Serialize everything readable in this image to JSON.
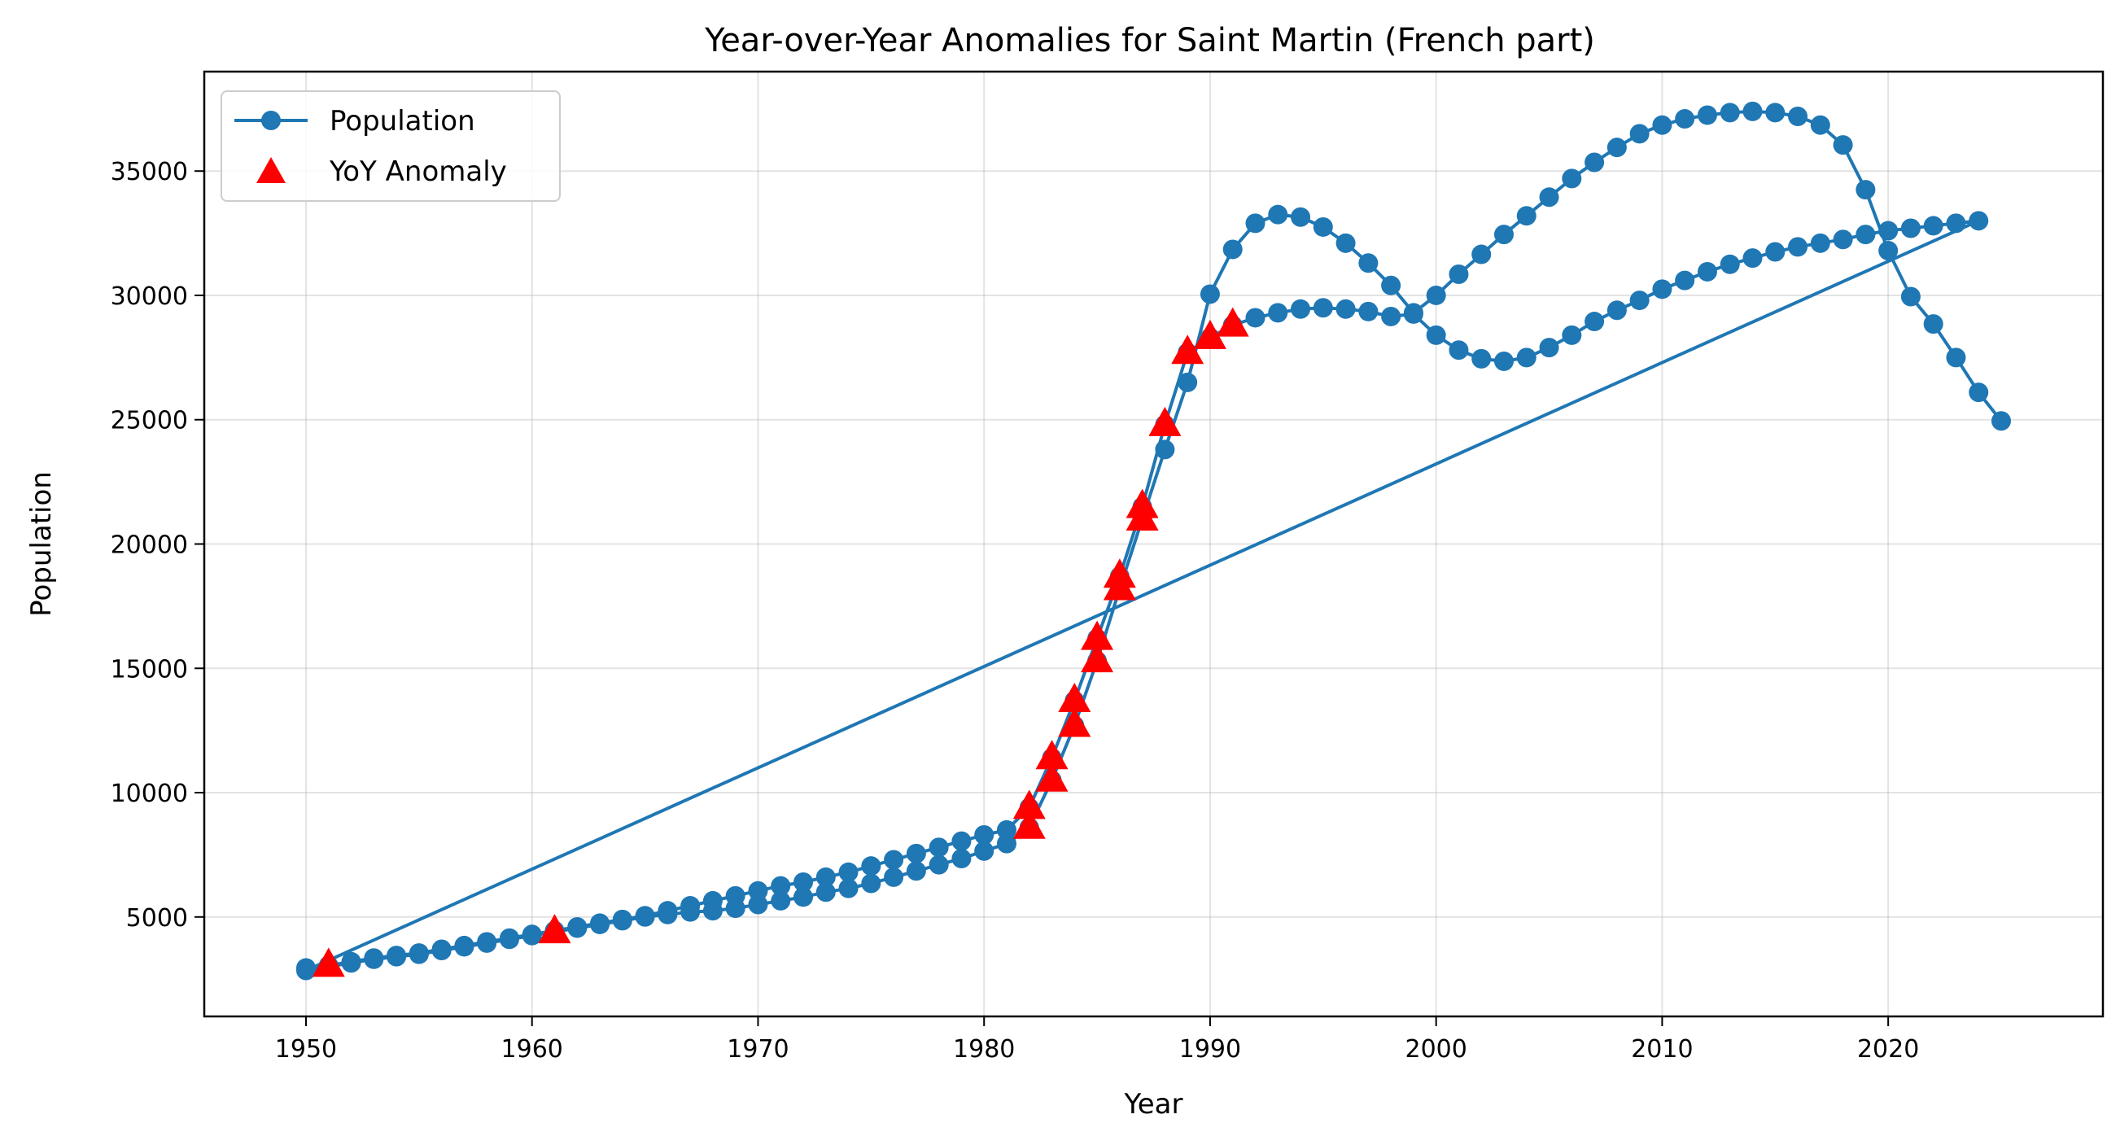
{
  "chart_data": {
    "type": "line",
    "title": "Year-over-Year Anomalies for Saint Martin (French part)",
    "xlabel": "Year",
    "ylabel": "Population",
    "xlim": [
      1945.5,
      2029.5
    ],
    "ylim": [
      1000,
      39000
    ],
    "xticks": [
      1950,
      1960,
      1970,
      1980,
      1990,
      2000,
      2010,
      2020
    ],
    "yticks": [
      5000,
      10000,
      15000,
      20000,
      25000,
      30000,
      35000
    ],
    "grid": true,
    "legend_position": "top-left",
    "colors": {
      "population": "#1f77b4",
      "anomaly": "#ff0000"
    },
    "series": [
      {
        "name": "Population",
        "style": "line-marker",
        "x": [
          1950,
          1951,
          1952,
          1953,
          1954,
          1955,
          1956,
          1957,
          1958,
          1959,
          1960,
          1961,
          1962,
          1963,
          1964,
          1965,
          1966,
          1967,
          1968,
          1969,
          1970,
          1971,
          1972,
          1973,
          1974,
          1975,
          1976,
          1977,
          1978,
          1979,
          1980,
          1981,
          1982,
          1983,
          1984,
          1985,
          1986,
          1987,
          1988,
          1989,
          1990,
          1991,
          1992,
          1993,
          1994,
          1995,
          1996,
          1997,
          1998,
          1999,
          2000,
          2001,
          2002,
          2003,
          2004,
          2005,
          2006,
          2007,
          2008,
          2009,
          2010,
          2011,
          2012,
          2013,
          2014,
          2015,
          2016,
          2017,
          2018,
          2019,
          2020,
          2021,
          2022,
          2023,
          2024,
          1950,
          1951,
          1952,
          1953,
          1954,
          1955,
          1956,
          1957,
          1958,
          1959,
          1960,
          1961,
          1962,
          1963,
          1964,
          1965,
          1966,
          1967,
          1968,
          1969,
          1970,
          1971,
          1972,
          1973,
          1974,
          1975,
          1976,
          1977,
          1978,
          1979,
          1980,
          1981,
          1982,
          1983,
          1984,
          1985,
          1986,
          1987,
          1988,
          1989,
          1990,
          1991,
          1992,
          1993,
          1994,
          1995,
          1996,
          1997,
          1998,
          1999,
          2000,
          2001,
          2002,
          2003,
          2004,
          2005,
          2006,
          2007,
          2008,
          2009,
          2010,
          2011,
          2012,
          2013,
          2014,
          2015,
          2016,
          2017,
          2018,
          2019,
          2020,
          2021,
          2022,
          2023,
          2024,
          2025
        ],
        "y": [
          2950,
          3050,
          3200,
          3350,
          3450,
          3550,
          3700,
          3850,
          4000,
          4150,
          4300,
          4450,
          4600,
          4750,
          4900,
          5050,
          5250,
          5450,
          5650,
          5850,
          6050,
          6250,
          6400,
          6600,
          6800,
          7050,
          7300,
          7550,
          7800,
          8050,
          8300,
          8500,
          9400,
          11400,
          13700,
          16200,
          18700,
          21500,
          24800,
          27700,
          28300,
          28800,
          29100,
          29300,
          29450,
          29500,
          29450,
          29350,
          29150,
          29250,
          28400,
          27800,
          27450,
          27350,
          27500,
          27900,
          28400,
          28950,
          29400,
          29800,
          30250,
          30600,
          30950,
          31250,
          31500,
          31750,
          31950,
          32100,
          32250,
          32450,
          32600,
          32700,
          32800,
          32900,
          33000,
          2850,
          3000,
          3150,
          3300,
          3400,
          3500,
          3650,
          3800,
          3950,
          4100,
          4250,
          4400,
          4550,
          4700,
          4850,
          5000,
          5100,
          5200,
          5250,
          5350,
          5500,
          5650,
          5800,
          6000,
          6150,
          6350,
          6600,
          6850,
          7100,
          7350,
          7650,
          7950,
          8600,
          10500,
          12700,
          15300,
          18200,
          21000,
          23800,
          26500,
          30050,
          31850,
          32900,
          33250,
          33150,
          32750,
          32100,
          31300,
          30400,
          29300,
          30000,
          30850,
          31650,
          32450,
          33200,
          33950,
          34700,
          35350,
          35950,
          36500,
          36850,
          37100,
          37250,
          37350,
          37400,
          37350,
          37200,
          36850,
          36050,
          34250,
          31800,
          29950,
          28850,
          27500,
          26100,
          24950
        ]
      },
      {
        "name": "YoY Anomaly",
        "style": "triangle-marker",
        "x": [
          1951,
          1961,
          1982,
          1982,
          1983,
          1983,
          1984,
          1984,
          1985,
          1985,
          1986,
          1986,
          1987,
          1987,
          1988,
          1989,
          1990,
          1991
        ],
        "y": [
          3050,
          4400,
          8600,
          9400,
          10500,
          11400,
          12700,
          13700,
          15300,
          16200,
          18200,
          18700,
          21000,
          21500,
          24800,
          27700,
          28300,
          28800
        ]
      }
    ]
  }
}
